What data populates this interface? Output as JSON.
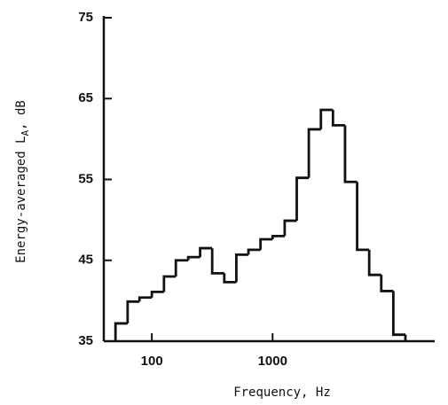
{
  "chart_data": {
    "type": "histogram",
    "xlabel": "Frequency, Hz",
    "ylabel": [
      "Energy-averaged L",
      "A",
      ", dB"
    ],
    "bins": [
      50,
      63,
      79,
      100,
      126,
      158,
      200,
      251,
      316,
      398,
      501,
      631,
      794,
      1000,
      1259,
      1585,
      1995,
      2512,
      3162,
      3981,
      5012,
      6310,
      7943,
      10000,
      12589
    ],
    "values": [
      37.2,
      39.9,
      40.4,
      41.1,
      43,
      45,
      45.4,
      46.5,
      43.4,
      42.3,
      45.7,
      46.3,
      47.6,
      48,
      49.9,
      55.2,
      61.2,
      63.6,
      61.7,
      54.7,
      46.3,
      43.2,
      41.2,
      35.8
    ],
    "color": "#111111",
    "xscale": "log",
    "xlim": [
      40,
      22000
    ],
    "xticks": [
      100,
      1000
    ],
    "ylim": [
      35,
      75
    ],
    "yticks": [
      35,
      45,
      55,
      65,
      75
    ]
  }
}
